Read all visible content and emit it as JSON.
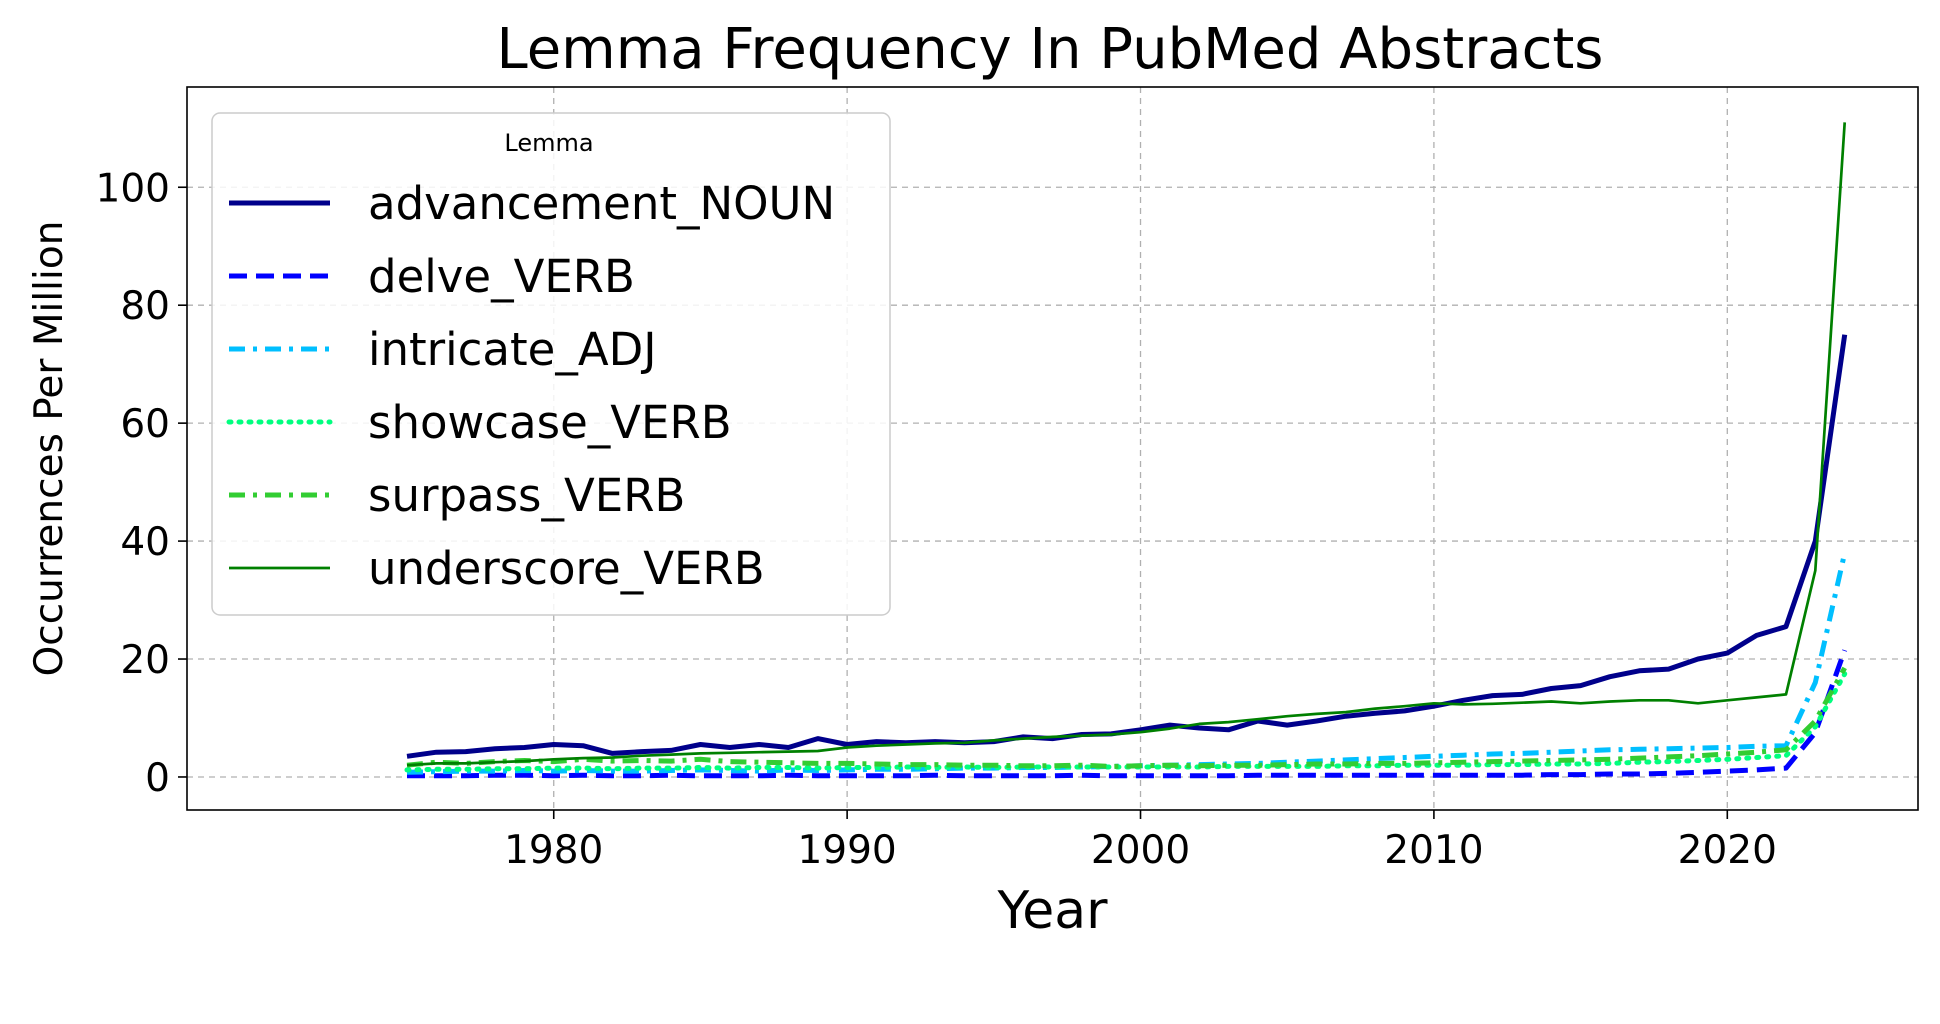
{
  "chart_data": {
    "type": "line",
    "title": "Lemma Frequency In PubMed Abstracts",
    "xlabel": "Year",
    "ylabel": "Occurrences Per Million",
    "xlim": [
      1967.5,
      2026.5
    ],
    "ylim": [
      -5.6,
      117
    ],
    "xticks": [
      1980,
      1990,
      2000,
      2010,
      2020
    ],
    "yticks": [
      0,
      20,
      40,
      60,
      80,
      100
    ],
    "grid": true,
    "legend": {
      "title": "Lemma",
      "placement": "top-left"
    },
    "x": [
      1975,
      1976,
      1977,
      1978,
      1979,
      1980,
      1981,
      1982,
      1983,
      1984,
      1985,
      1986,
      1987,
      1988,
      1989,
      1990,
      1991,
      1992,
      1993,
      1994,
      1995,
      1996,
      1997,
      1998,
      1999,
      2000,
      2001,
      2002,
      2003,
      2004,
      2005,
      2006,
      2007,
      2008,
      2009,
      2010,
      2011,
      2012,
      2013,
      2014,
      2015,
      2016,
      2017,
      2018,
      2019,
      2020,
      2021,
      2022,
      2023,
      2024
    ],
    "series": [
      {
        "name": "advancement_NOUN",
        "color": "#00008b",
        "style": "solid-thick",
        "values": [
          3.5,
          4.2,
          4.3,
          4.8,
          5.0,
          5.5,
          5.3,
          4.0,
          4.3,
          4.5,
          5.5,
          5.0,
          5.5,
          5.0,
          6.5,
          5.5,
          6.0,
          5.8,
          6.0,
          5.8,
          6.0,
          6.8,
          6.5,
          7.2,
          7.3,
          8.0,
          8.8,
          8.3,
          8.0,
          9.5,
          8.8,
          9.5,
          10.3,
          10.8,
          11.2,
          12.0,
          13.0,
          13.8,
          14.0,
          15.0,
          15.5,
          17.0,
          18.0,
          18.3,
          20.0,
          21.0,
          24.0,
          25.5,
          40.0,
          75.0
        ]
      },
      {
        "name": "delve_VERB",
        "color": "#0000ff",
        "style": "dashed",
        "values": [
          0.2,
          0.2,
          0.2,
          0.3,
          0.3,
          0.2,
          0.3,
          0.2,
          0.2,
          0.3,
          0.2,
          0.2,
          0.2,
          0.3,
          0.2,
          0.2,
          0.2,
          0.2,
          0.3,
          0.2,
          0.2,
          0.2,
          0.2,
          0.3,
          0.2,
          0.2,
          0.2,
          0.2,
          0.2,
          0.3,
          0.3,
          0.3,
          0.3,
          0.3,
          0.3,
          0.3,
          0.3,
          0.3,
          0.3,
          0.4,
          0.4,
          0.5,
          0.5,
          0.6,
          0.8,
          1.0,
          1.2,
          1.5,
          7.5,
          21.5
        ]
      },
      {
        "name": "intricate_ADJ",
        "color": "#00bfff",
        "style": "dashdot",
        "values": [
          0.8,
          0.9,
          1.0,
          1.0,
          1.1,
          1.0,
          1.1,
          1.0,
          1.0,
          1.1,
          1.2,
          1.1,
          1.0,
          1.2,
          1.1,
          1.2,
          1.3,
          1.3,
          1.4,
          1.5,
          1.5,
          1.6,
          1.6,
          1.7,
          1.8,
          1.9,
          2.0,
          2.1,
          2.2,
          2.3,
          2.5,
          2.7,
          2.9,
          3.1,
          3.3,
          3.5,
          3.7,
          3.9,
          4.0,
          4.2,
          4.4,
          4.6,
          4.7,
          4.8,
          4.9,
          5.0,
          5.2,
          5.3,
          16.0,
          38.0
        ]
      },
      {
        "name": "showcase_VERB",
        "color": "#00ff7f",
        "style": "dotted",
        "values": [
          1.2,
          1.3,
          1.3,
          1.4,
          1.4,
          1.5,
          1.5,
          1.4,
          1.5,
          1.5,
          1.6,
          1.5,
          1.6,
          1.6,
          1.5,
          1.6,
          1.6,
          1.7,
          1.6,
          1.7,
          1.6,
          1.7,
          1.7,
          1.7,
          1.7,
          1.7,
          1.7,
          1.7,
          1.8,
          1.8,
          1.8,
          1.8,
          1.9,
          1.9,
          2.0,
          2.0,
          2.0,
          2.1,
          2.1,
          2.2,
          2.2,
          2.3,
          2.5,
          2.6,
          2.8,
          3.0,
          3.3,
          3.6,
          8.5,
          17.5
        ]
      },
      {
        "name": "surpass_VERB",
        "color": "#32cd32",
        "style": "dashdot",
        "values": [
          2.0,
          2.5,
          2.3,
          2.6,
          2.8,
          2.6,
          3.0,
          2.7,
          2.8,
          2.7,
          3.0,
          2.6,
          2.5,
          2.4,
          2.3,
          2.3,
          2.2,
          2.1,
          2.1,
          2.0,
          2.0,
          1.9,
          1.9,
          2.0,
          1.8,
          1.9,
          2.0,
          1.9,
          2.0,
          2.0,
          2.1,
          2.2,
          2.2,
          2.3,
          2.3,
          2.4,
          2.5,
          2.6,
          2.7,
          2.8,
          2.9,
          3.0,
          3.2,
          3.4,
          3.6,
          3.9,
          4.2,
          4.6,
          9.5,
          18.5
        ]
      },
      {
        "name": "underscore_VERB",
        "color": "#008000",
        "style": "solid-thin",
        "values": [
          2.0,
          2.3,
          2.3,
          2.5,
          2.7,
          3.0,
          3.2,
          3.3,
          3.6,
          3.8,
          4.0,
          4.1,
          4.2,
          4.3,
          4.4,
          5.0,
          5.3,
          5.5,
          5.7,
          5.8,
          6.2,
          6.5,
          6.8,
          7.0,
          7.2,
          7.6,
          8.2,
          9.0,
          9.3,
          9.8,
          10.3,
          10.7,
          11.0,
          11.6,
          12.0,
          12.5,
          12.3,
          12.4,
          12.6,
          12.8,
          12.5,
          12.8,
          13.0,
          13.0,
          12.5,
          13.0,
          13.5,
          14.0,
          35.0,
          111.0
        ]
      }
    ]
  }
}
